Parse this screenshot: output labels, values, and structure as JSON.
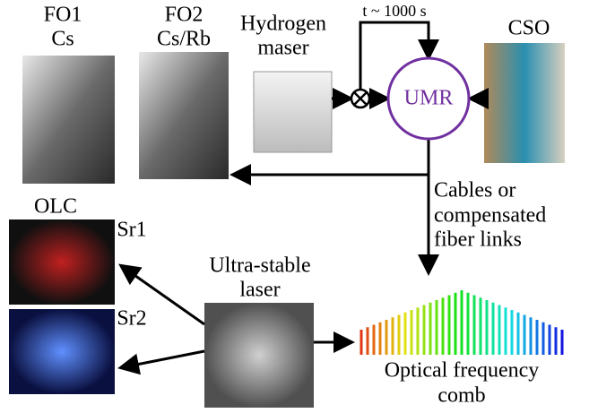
{
  "nodes": {
    "fo1": [
      "FO1",
      "Cs"
    ],
    "fo2": [
      "FO2",
      "Cs/Rb"
    ],
    "maser": [
      "Hydrogen",
      "maser"
    ],
    "loop": "t ~ 1000 s",
    "umr": "UMR",
    "cso": "CSO",
    "link": [
      "Cables or",
      "compensated",
      "fiber links"
    ],
    "olc": "OLC",
    "sr1": "Sr1",
    "sr2": "Sr2",
    "laser": [
      "Ultra-stable",
      "laser"
    ],
    "comb": [
      "Optical frequency",
      "comb"
    ]
  }
}
